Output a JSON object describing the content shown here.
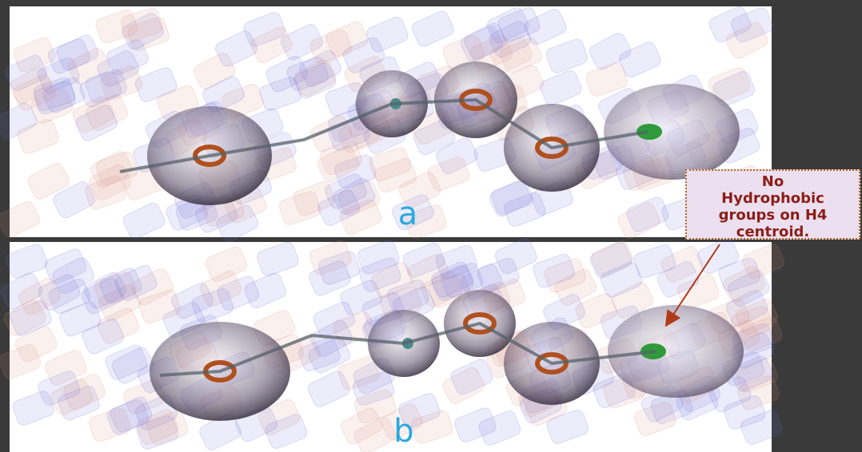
{
  "panels": [
    {
      "label": "a"
    },
    {
      "label": "b"
    }
  ],
  "callout": {
    "lines": [
      "No",
      "Hydrophobic",
      "groups on H4",
      "centroid."
    ]
  }
}
